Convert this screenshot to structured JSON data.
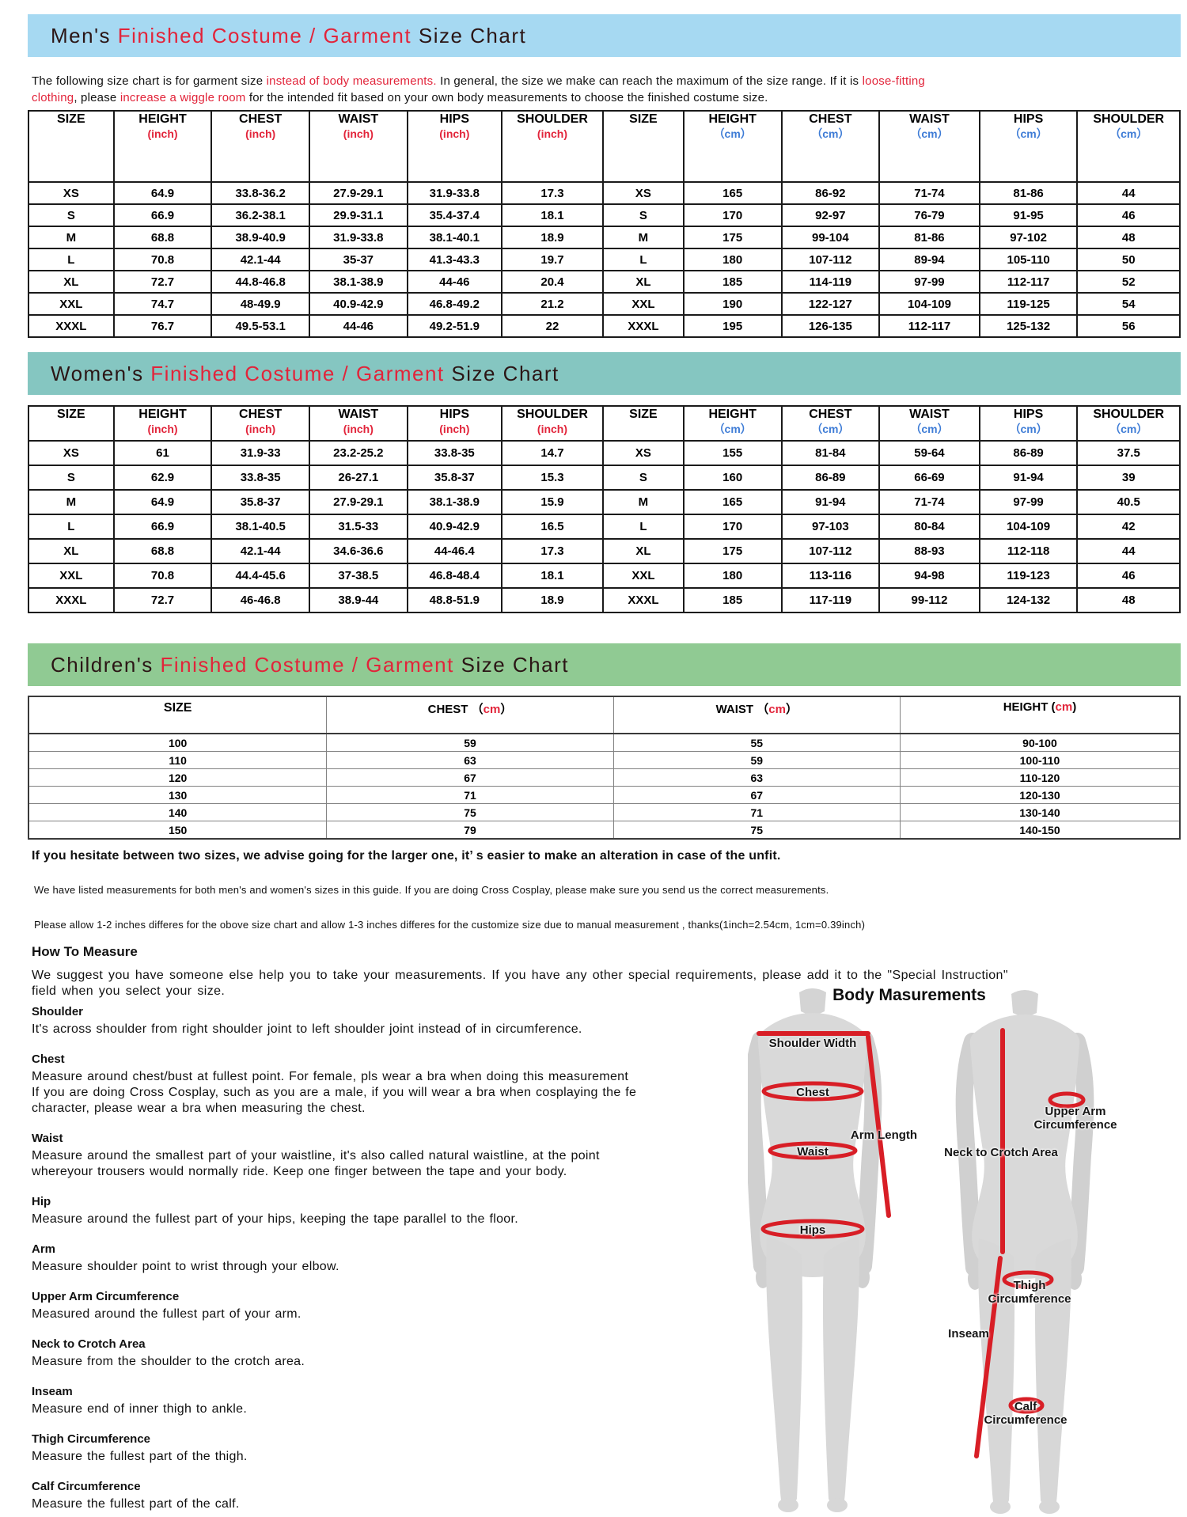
{
  "colors": {
    "red": "#e2243a",
    "blue": "#3e7cd6",
    "men_bar": "#a6d9f2",
    "women_bar": "#85c6c1",
    "children_bar": "#90ca93",
    "annotation": "#d81e26"
  },
  "men_chart": {
    "bar_title": [
      {
        "t": "Men's "
      },
      {
        "t": "Finished Costume / Garment",
        "color": "#e2243a"
      },
      {
        "t": " Size Chart"
      }
    ],
    "table": {
      "columns": [
        {
          "label": "SIZE"
        },
        {
          "label": "HEIGHT",
          "unit": "(inch)",
          "unit_color": "#e2243a"
        },
        {
          "label": "CHEST",
          "unit": "(inch)",
          "unit_color": "#e2243a"
        },
        {
          "label": "WAIST",
          "unit": "(inch)",
          "unit_color": "#e2243a"
        },
        {
          "label": "HIPS",
          "unit": "(inch)",
          "unit_color": "#e2243a"
        },
        {
          "label": "SHOULDER",
          "unit": "(inch)",
          "unit_color": "#e2243a"
        },
        {
          "label": "SIZE"
        },
        {
          "label": "HEIGHT",
          "unit": "（cm）",
          "unit_color": "#3e7cd6"
        },
        {
          "label": "CHEST",
          "unit": "（cm）",
          "unit_color": "#3e7cd6"
        },
        {
          "label": "WAIST",
          "unit": "（cm）",
          "unit_color": "#3e7cd6"
        },
        {
          "label": "HIPS",
          "unit": "（cm）",
          "unit_color": "#3e7cd6"
        },
        {
          "label": "SHOULDER",
          "unit": "（cm）",
          "unit_color": "#3e7cd6"
        }
      ],
      "rows": [
        [
          "XS",
          "64.9",
          "33.8-36.2",
          "27.9-29.1",
          "31.9-33.8",
          "17.3",
          "XS",
          "165",
          "86-92",
          "71-74",
          "81-86",
          "44"
        ],
        [
          "S",
          "66.9",
          "36.2-38.1",
          "29.9-31.1",
          "35.4-37.4",
          "18.1",
          "S",
          "170",
          "92-97",
          "76-79",
          "91-95",
          "46"
        ],
        [
          "M",
          "68.8",
          "38.9-40.9",
          "31.9-33.8",
          "38.1-40.1",
          "18.9",
          "M",
          "175",
          "99-104",
          "81-86",
          "97-102",
          "48"
        ],
        [
          "L",
          "70.8",
          "42.1-44",
          "35-37",
          "41.3-43.3",
          "19.7",
          "L",
          "180",
          "107-112",
          "89-94",
          "105-110",
          "50"
        ],
        [
          "XL",
          "72.7",
          "44.8-46.8",
          "38.1-38.9",
          "44-46",
          "20.4",
          "XL",
          "185",
          "114-119",
          "97-99",
          "112-117",
          "52"
        ],
        [
          "XXL",
          "74.7",
          "48-49.9",
          "40.9-42.9",
          "46.8-49.2",
          "21.2",
          "XXL",
          "190",
          "122-127",
          "104-109",
          "119-125",
          "54"
        ],
        [
          "XXXL",
          "76.7",
          "49.5-53.1",
          "44-46",
          "49.2-51.9",
          "22",
          "XXXL",
          "195",
          "126-135",
          "112-117",
          "125-132",
          "56"
        ]
      ]
    }
  },
  "women_chart": {
    "bar_title": [
      {
        "t": "Women's "
      },
      {
        "t": "Finished Costume / Garment",
        "color": "#e2243a"
      },
      {
        "t": " Size Chart"
      }
    ],
    "table": {
      "columns": [
        {
          "label": "SIZE"
        },
        {
          "label": "HEIGHT",
          "unit": "(inch)",
          "unit_color": "#e2243a"
        },
        {
          "label": "CHEST",
          "unit": "(inch)",
          "unit_color": "#e2243a"
        },
        {
          "label": "WAIST",
          "unit": "(inch)",
          "unit_color": "#e2243a"
        },
        {
          "label": "HIPS",
          "unit": "(inch)",
          "unit_color": "#e2243a"
        },
        {
          "label": "SHOULDER",
          "unit": "(inch)",
          "unit_color": "#e2243a"
        },
        {
          "label": "SIZE"
        },
        {
          "label": "HEIGHT",
          "unit": "（cm）",
          "unit_color": "#3e7cd6"
        },
        {
          "label": "CHEST",
          "unit": "（cm）",
          "unit_color": "#3e7cd6"
        },
        {
          "label": "WAIST",
          "unit": "（cm）",
          "unit_color": "#3e7cd6"
        },
        {
          "label": "HIPS",
          "unit": "（cm）",
          "unit_color": "#3e7cd6"
        },
        {
          "label": "SHOULDER",
          "unit": "（cm）",
          "unit_color": "#3e7cd6"
        }
      ],
      "rows": [
        [
          "XS",
          "61",
          "31.9-33",
          "23.2-25.2",
          "33.8-35",
          "14.7",
          "XS",
          "155",
          "81-84",
          "59-64",
          "86-89",
          "37.5"
        ],
        [
          "S",
          "62.9",
          "33.8-35",
          "26-27.1",
          "35.8-37",
          "15.3",
          "S",
          "160",
          "86-89",
          "66-69",
          "91-94",
          "39"
        ],
        [
          "M",
          "64.9",
          "35.8-37",
          "27.9-29.1",
          "38.1-38.9",
          "15.9",
          "M",
          "165",
          "91-94",
          "71-74",
          "97-99",
          "40.5"
        ],
        [
          "L",
          "66.9",
          "38.1-40.5",
          "31.5-33",
          "40.9-42.9",
          "16.5",
          "L",
          "170",
          "97-103",
          "80-84",
          "104-109",
          "42"
        ],
        [
          "XL",
          "68.8",
          "42.1-44",
          "34.6-36.6",
          "44-46.4",
          "17.3",
          "XL",
          "175",
          "107-112",
          "88-93",
          "112-118",
          "44"
        ],
        [
          "XXL",
          "70.8",
          "44.4-45.6",
          "37-38.5",
          "46.8-48.4",
          "18.1",
          "XXL",
          "180",
          "113-116",
          "94-98",
          "119-123",
          "46"
        ],
        [
          "XXXL",
          "72.7",
          "46-46.8",
          "38.9-44",
          "48.8-51.9",
          "18.9",
          "XXXL",
          "185",
          "117-119",
          "99-112",
          "124-132",
          "48"
        ]
      ]
    }
  },
  "children_chart": {
    "bar_title": [
      {
        "t": "Children's "
      },
      {
        "t": "Finished Costume / Garment",
        "color": "#e2243a"
      },
      {
        "t": " Size Chart"
      }
    ],
    "table": {
      "columns": [
        {
          "label": "SIZE"
        },
        {
          "label": "CHEST",
          "unit_open": "（",
          "unit": "cm",
          "unit_close": "）",
          "unit_color": "#e2243a"
        },
        {
          "label": "WAIST",
          "unit_open": "（",
          "unit": "cm",
          "unit_close": "）",
          "unit_color": "#e2243a"
        },
        {
          "label": "HEIGHT",
          "unit_open": "(",
          "unit": "cm",
          "unit_close": ")",
          "unit_color": "#e2243a"
        }
      ],
      "rows": [
        [
          "100",
          "59",
          "55",
          "90-100"
        ],
        [
          "110",
          "63",
          "59",
          "100-110"
        ],
        [
          "120",
          "67",
          "63",
          "110-120"
        ],
        [
          "130",
          "71",
          "67",
          "120-130"
        ],
        [
          "140",
          "75",
          "71",
          "130-140"
        ],
        [
          "150",
          "79",
          "75",
          "140-150"
        ]
      ]
    }
  },
  "intro_lines": [
    [
      {
        "t": "The following size chart is for garment size "
      },
      {
        "t": "instead of body measurements.",
        "color": "#e2243a"
      },
      {
        "t": " In general, the size we make can reach the maximum of the size range. If it is "
      },
      {
        "t": "loose-fitting",
        "color": "#e2243a"
      }
    ],
    [
      {
        "t": "clothing",
        "color": "#e2243a"
      },
      {
        "t": ", please "
      },
      {
        "t": "increase a wiggle room",
        "color": "#e2243a"
      },
      {
        "t": " for the intended fit based on your own body measurements to choose the finished costume size."
      }
    ]
  ],
  "notes": {
    "hesitate": "If you hesitate between two sizes, we advise going for the larger one, it’ s easier to make an alteration in case of the unfit.",
    "listed": "We have listed measurements for both men's and women's sizes in this guide. If you are doing Cross Cosplay, please make sure you send us the correct measurements.",
    "allow": "Please allow 1-2 inches differes for the obove size chart and allow 1-3 inches differes for the customize size due to manual measurement , thanks(1inch=2.54cm, 1cm=0.39inch)"
  },
  "how_to": {
    "heading": "How To Measure",
    "intro_lines": [
      "We suggest you have someone else help you to take your measurements. If you have any other special requirements, please add it to the \"Special Instruction\"",
      "field when you select your size."
    ],
    "sections": [
      {
        "heading": "Shoulder",
        "lines": [
          "It's across shoulder from right shoulder joint to left shoulder joint instead of in circumference."
        ]
      },
      {
        "heading": "Chest",
        "lines": [
          "Measure around chest/bust at fullest point. For female, pls wear a bra when doing this measurement",
          "If you are doing Cross Cosplay, such as you are a male, if you will wear a bra when cosplaying the fe",
          "character, please wear a bra when measuring the chest."
        ]
      },
      {
        "heading": "Waist",
        "lines": [
          "Measure around the smallest part of your waistline, it's also called natural waistline, at the point",
          "whereyour trousers would normally ride. Keep one finger between the tape and your body."
        ]
      },
      {
        "heading": "Hip",
        "lines": [
          "Measure around the fullest part of your hips, keeping the tape parallel to the floor."
        ]
      },
      {
        "heading": "Arm",
        "lines": [
          "Measure shoulder point to wrist through your elbow."
        ]
      },
      {
        "heading": "Upper Arm Circumference",
        "lines": [
          "Measured around the fullest part of your arm."
        ]
      },
      {
        "heading": "Neck to Crotch Area",
        "lines": [
          "Measure from the shoulder to the crotch area."
        ]
      },
      {
        "heading": "Inseam",
        "lines": [
          "Measure end of inner thigh to ankle."
        ]
      },
      {
        "heading": "Thigh Circumference",
        "lines": [
          "Measure the fullest part of the thigh."
        ]
      },
      {
        "heading": "Calf Circumference",
        "lines": [
          "Measure the fullest part of the calf."
        ]
      }
    ]
  },
  "body_diagram": {
    "title": "Body Masurements",
    "labels": {
      "shoulder_width": "Shoulder Width",
      "chest": "Chest",
      "arm_length": "Arm Length",
      "waist": "Waist",
      "hips": "Hips",
      "upper_arm": "Upper Arm\nCircumference",
      "neck_to_crotch": "Neck to Crotch Area",
      "thigh": "Thigh\nCircumference",
      "inseam": "Inseam",
      "calf": "Calf\nCircumference"
    }
  }
}
